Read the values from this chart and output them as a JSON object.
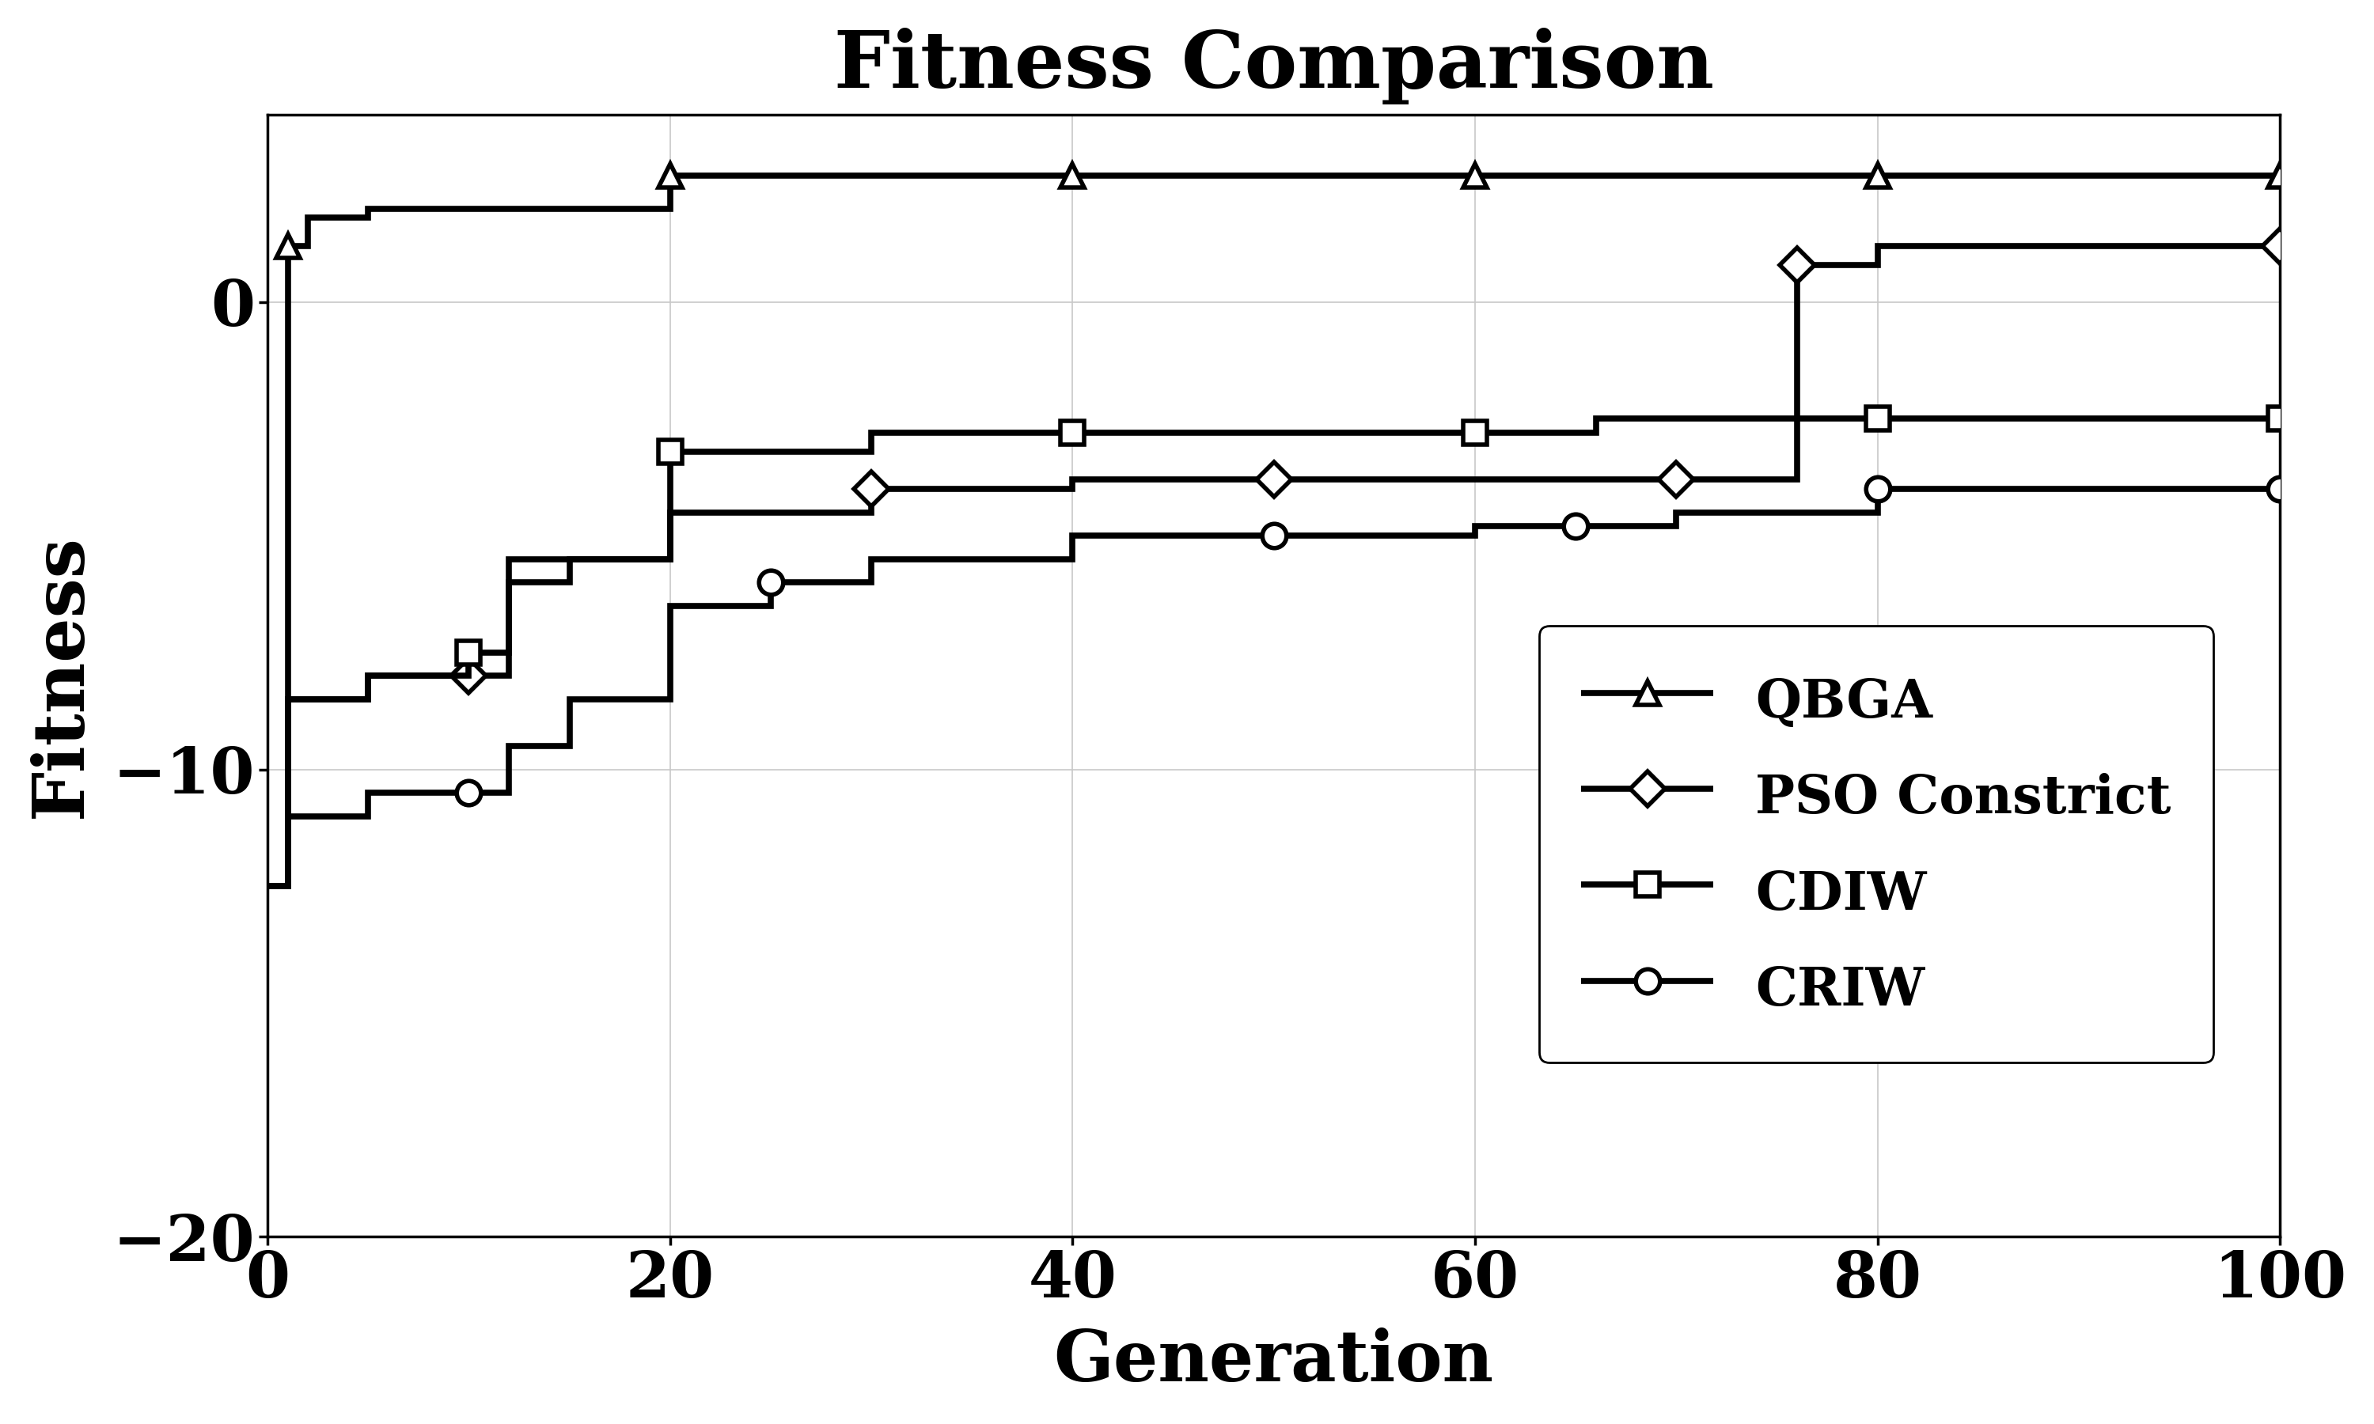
{
  "title": "Fitness Comparison",
  "xlabel": "Generation",
  "ylabel": "Fitness",
  "xlim": [
    0,
    100
  ],
  "ylim": [
    -20,
    4
  ],
  "yticks": [
    -20,
    -10,
    0
  ],
  "xticks": [
    0,
    20,
    40,
    60,
    80,
    100
  ],
  "background_color": "#ffffff",
  "line_color": "#000000",
  "grid_color": "#c8c8c8",
  "title_fontsize": 72,
  "label_fontsize": 64,
  "tick_fontsize": 58,
  "legend_fontsize": 48,
  "linewidth": 5.5,
  "markersize": 22,
  "markeredgewidth": 4.0,
  "series": [
    {
      "label": "QBGA",
      "marker": "^",
      "x": [
        0,
        1,
        2,
        5,
        10,
        20,
        30,
        40,
        50,
        60,
        70,
        80,
        90,
        100
      ],
      "y": [
        -12.5,
        1.2,
        1.8,
        2.0,
        2.0,
        2.7,
        2.7,
        2.7,
        2.7,
        2.7,
        2.7,
        2.7,
        2.7,
        2.7
      ],
      "markerat": [
        1,
        20,
        40,
        60,
        80,
        100
      ]
    },
    {
      "label": "PSO Constrict",
      "marker": "D",
      "x": [
        0,
        1,
        5,
        10,
        12,
        20,
        30,
        40,
        50,
        60,
        70,
        75,
        76,
        80,
        90,
        100
      ],
      "y": [
        -12.5,
        -8.5,
        -8.0,
        -8.0,
        -5.5,
        -4.5,
        -4.0,
        -3.8,
        -3.8,
        -3.8,
        -3.8,
        -3.8,
        0.8,
        1.2,
        1.2,
        1.2
      ],
      "markerat": [
        10,
        30,
        50,
        70,
        76,
        100
      ]
    },
    {
      "label": "CDIW",
      "marker": "s",
      "x": [
        0,
        1,
        5,
        10,
        12,
        15,
        20,
        30,
        40,
        50,
        60,
        65,
        66,
        70,
        80,
        90,
        100
      ],
      "y": [
        -12.5,
        -8.5,
        -8.0,
        -7.5,
        -6.0,
        -5.5,
        -3.2,
        -2.8,
        -2.8,
        -2.8,
        -2.8,
        -2.8,
        -2.5,
        -2.5,
        -2.5,
        -2.5,
        -2.5
      ],
      "markerat": [
        10,
        20,
        40,
        60,
        80,
        100
      ]
    },
    {
      "label": "CRIW",
      "marker": "o",
      "x": [
        0,
        1,
        5,
        10,
        12,
        15,
        20,
        25,
        30,
        40,
        50,
        60,
        65,
        70,
        80,
        90,
        100
      ],
      "y": [
        -12.5,
        -11.0,
        -10.5,
        -10.5,
        -9.5,
        -8.5,
        -6.5,
        -6.0,
        -5.5,
        -5.0,
        -5.0,
        -4.8,
        -4.8,
        -4.5,
        -4.0,
        -4.0,
        -4.0
      ],
      "markerat": [
        10,
        25,
        50,
        65,
        80,
        100
      ]
    }
  ]
}
